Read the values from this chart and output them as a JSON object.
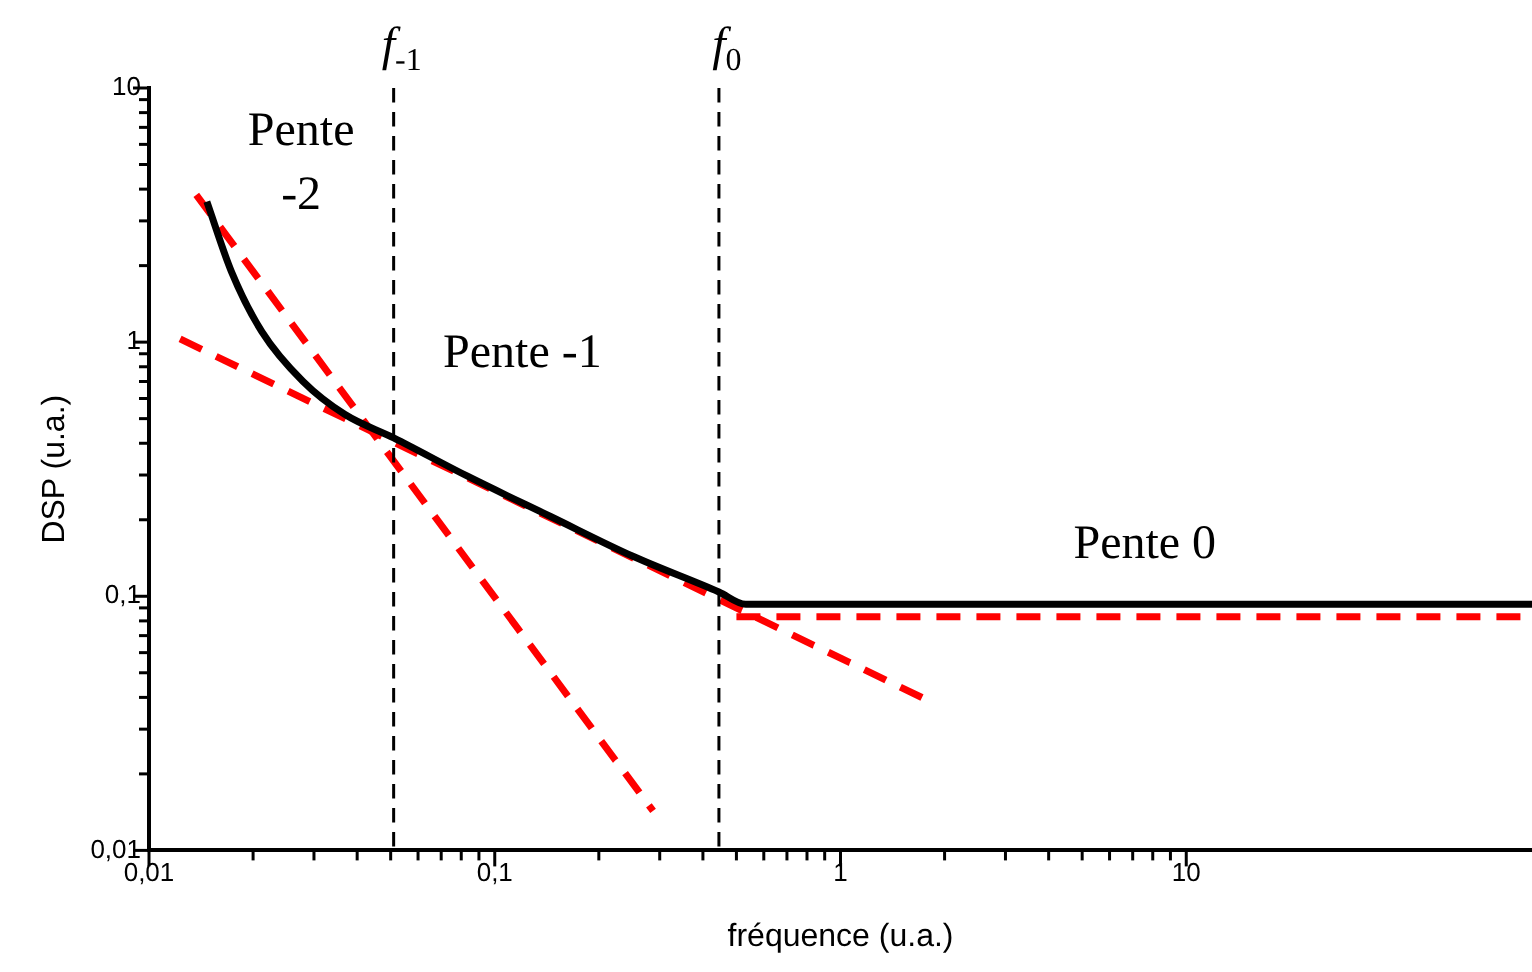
{
  "chart_data": {
    "type": "line",
    "xlabel": "fréquence (u.a.)",
    "ylabel": "DSP (u.a.)",
    "log": "xy",
    "xlim": [
      0.01,
      100
    ],
    "ylim": [
      0.01,
      10
    ],
    "xticks": [
      {
        "value": 0.01,
        "label": "0,01"
      },
      {
        "value": 0.02,
        "label": null
      },
      {
        "value": 0.03,
        "label": null
      },
      {
        "value": 0.04,
        "label": null
      },
      {
        "value": 0.05,
        "label": null
      },
      {
        "value": 0.06,
        "label": null
      },
      {
        "value": 0.07,
        "label": null
      },
      {
        "value": 0.08,
        "label": null
      },
      {
        "value": 0.09,
        "label": null
      },
      {
        "value": 0.1,
        "label": "0,1"
      },
      {
        "value": 0.2,
        "label": null
      },
      {
        "value": 0.3,
        "label": null
      },
      {
        "value": 0.4,
        "label": null
      },
      {
        "value": 0.5,
        "label": null
      },
      {
        "value": 0.6,
        "label": null
      },
      {
        "value": 0.7,
        "label": null
      },
      {
        "value": 0.8,
        "label": null
      },
      {
        "value": 0.9,
        "label": null
      },
      1,
      {
        "value": 2,
        "label": null
      },
      {
        "value": 3,
        "label": null
      },
      {
        "value": 4,
        "label": null
      },
      {
        "value": 5,
        "label": null
      },
      {
        "value": 6,
        "label": null
      },
      {
        "value": 7,
        "label": null
      },
      {
        "value": 8,
        "label": null
      },
      {
        "value": 9,
        "label": null
      },
      10
    ],
    "yticks": [
      {
        "value": 0.01,
        "label": "0,01"
      },
      {
        "value": 0.02,
        "label": null
      },
      {
        "value": 0.03,
        "label": null
      },
      {
        "value": 0.04,
        "label": null
      },
      {
        "value": 0.05,
        "label": null
      },
      {
        "value": 0.06,
        "label": null
      },
      {
        "value": 0.07,
        "label": null
      },
      {
        "value": 0.08,
        "label": null
      },
      {
        "value": 0.09,
        "label": null
      },
      {
        "value": 0.1,
        "label": "0,1"
      },
      {
        "value": 0.2,
        "label": null
      },
      {
        "value": 0.3,
        "label": null
      },
      {
        "value": 0.4,
        "label": null
      },
      {
        "value": 0.5,
        "label": null
      },
      {
        "value": 0.6,
        "label": null
      },
      {
        "value": 0.7,
        "label": null
      },
      {
        "value": 0.8,
        "label": null
      },
      {
        "value": 0.9,
        "label": null
      },
      1,
      {
        "value": 2,
        "label": null
      },
      {
        "value": 3,
        "label": null
      },
      {
        "value": 4,
        "label": null
      },
      {
        "value": 5,
        "label": null
      },
      {
        "value": 6,
        "label": null
      },
      {
        "value": 7,
        "label": null
      },
      {
        "value": 8,
        "label": null
      },
      {
        "value": 9,
        "label": null
      },
      10
    ],
    "grid": false,
    "legend": false,
    "marker": "none",
    "series": [
      {
        "color": "#000000",
        "line_style": "solid",
        "x": [
          0.0147,
          0.0173,
          0.0212,
          0.0279,
          0.0368,
          0.051,
          0.0837,
          0.145,
          0.25,
          0.445,
          0.532,
          100
        ],
        "values": [
          3.57,
          1.9,
          1.1,
          0.7,
          0.52,
          0.42,
          0.296,
          0.206,
          0.144,
          0.104,
          0.093,
          0.093
        ]
      },
      {
        "color": "#ff0000",
        "line_style": "dashed",
        "x": [
          0.0137,
          0.287
        ],
        "values": [
          3.8,
          0.0143
        ]
      },
      {
        "color": "#ff0000",
        "line_style": "dashed",
        "x": [
          0.0123,
          1.75
        ],
        "values": [
          1.03,
          0.0395
        ]
      },
      {
        "color": "#ff0000",
        "line_style": "dashed",
        "x": [
          0.5,
          97
        ],
        "values": [
          0.083,
          0.083
        ]
      }
    ],
    "ref_lines": [
      {
        "axis": "x",
        "value": 0.051,
        "label": "f$_{-1}$",
        "color": "#000000",
        "line_style": "dashed"
      },
      {
        "axis": "x",
        "value": 0.445,
        "label": "f$_{0}$",
        "color": "#000000",
        "line_style": "dashed"
      }
    ],
    "annotations": [
      "Pente\n-2",
      "Pente -1",
      "Pente 0"
    ]
  }
}
